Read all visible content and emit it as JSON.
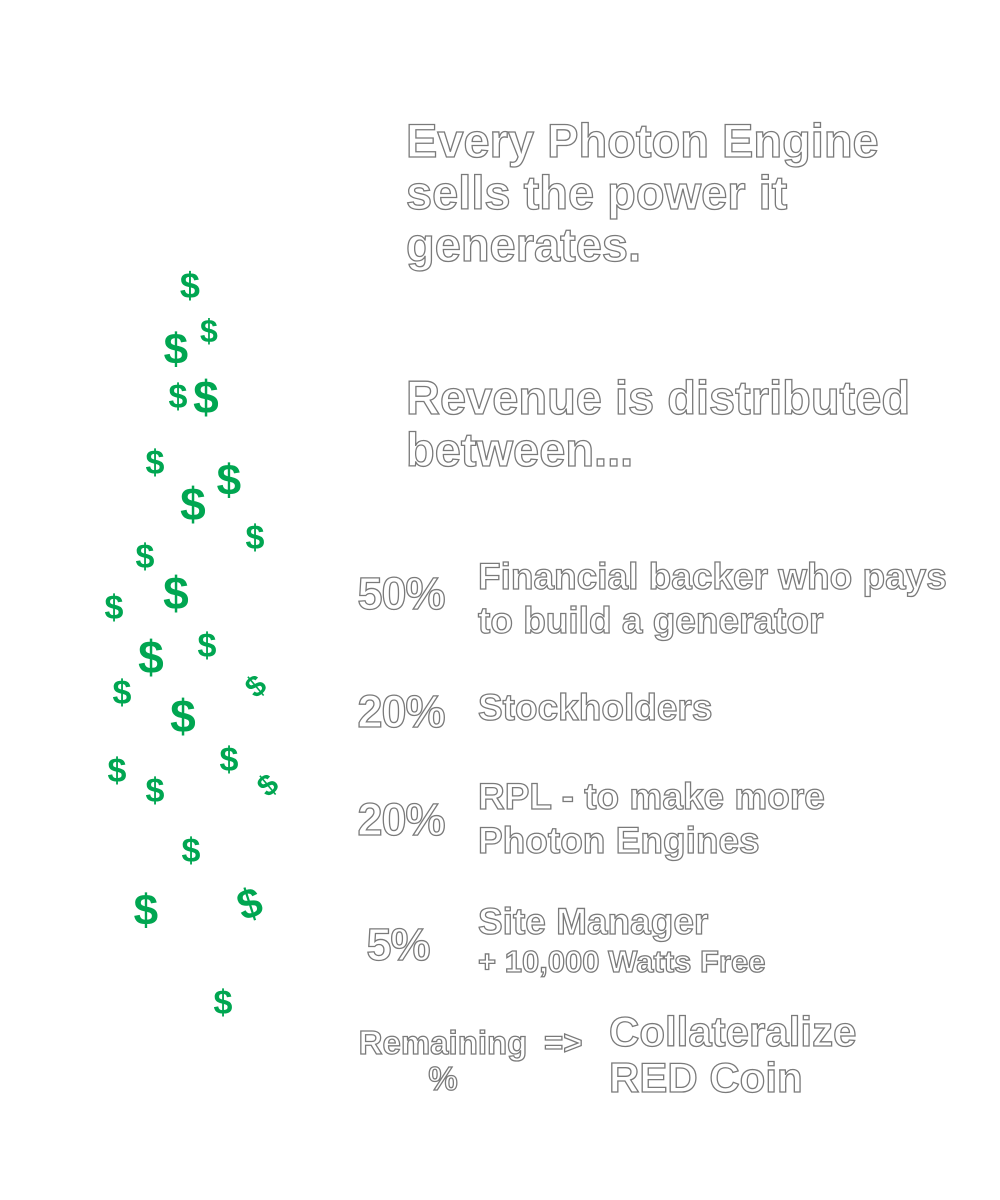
{
  "headline": {
    "line1": "Every Photon Engine sells the power it generates.",
    "line2": "Revenue is distributed between..."
  },
  "distribution": [
    {
      "percent": "50%",
      "recipient": "Financial backer who pays to build a generator",
      "note": ""
    },
    {
      "percent": "20%",
      "recipient": "Stockholders",
      "note": ""
    },
    {
      "percent": "20%",
      "recipient": "RPL - to make more Photon Engines",
      "note": ""
    },
    {
      "percent": "5%",
      "recipient": "Site Manager",
      "note": "+ 10,000 Watts Free"
    }
  ],
  "remaining": {
    "label": "Remaining %",
    "arrow": "=>",
    "target": "Collateralize RED Coin"
  },
  "decoration": {
    "icon": "dollar-sign-icon",
    "glyph": "$",
    "color": "#00a651"
  }
}
